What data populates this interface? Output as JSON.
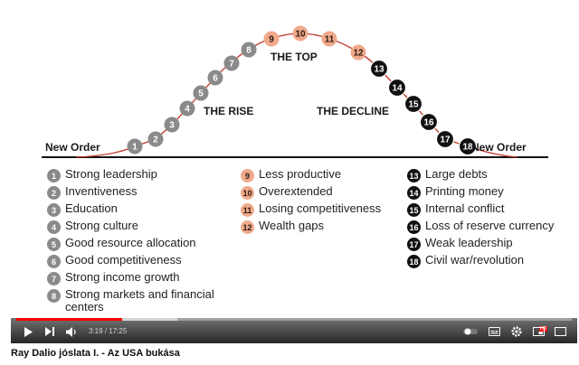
{
  "video": {
    "title": "Ray Dalio jóslata I. - Az USA bukása",
    "time_current": "3:19",
    "time_separator": "/",
    "time_total": "17:25",
    "played_fraction": 0.19,
    "buffered_fraction": 0.29,
    "hd_badge": "HD"
  },
  "slide": {
    "left_label": "New Order",
    "right_label": "New Order",
    "rise_label": "THE RISE",
    "top_label": "THE TOP",
    "decline_label": "THE DECLINE",
    "stages": [
      "1",
      "2",
      "3",
      "4",
      "5",
      "6",
      "7",
      "8",
      "9",
      "10",
      "11",
      "12",
      "13",
      "14",
      "15",
      "16",
      "17",
      "18"
    ],
    "colors": {
      "rise": "#8a8a8a",
      "top": "#f0a98b",
      "decline": "#111111",
      "curve": "#c0392b"
    },
    "columns": [
      {
        "color": "gray",
        "items": [
          {
            "n": "1",
            "t": "Strong leadership"
          },
          {
            "n": "2",
            "t": "Inventiveness"
          },
          {
            "n": "3",
            "t": "Education"
          },
          {
            "n": "4",
            "t": "Strong culture"
          },
          {
            "n": "5",
            "t": "Good resource allocation"
          },
          {
            "n": "6",
            "t": "Good competitiveness"
          },
          {
            "n": "7",
            "t": "Strong income growth"
          },
          {
            "n": "8",
            "t": "Strong markets and financial centers"
          }
        ]
      },
      {
        "color": "salmon",
        "items": [
          {
            "n": "9",
            "t": "Less productive"
          },
          {
            "n": "10",
            "t": "Overextended"
          },
          {
            "n": "11",
            "t": "Losing competitiveness"
          },
          {
            "n": "12",
            "t": "Wealth gaps"
          }
        ]
      },
      {
        "color": "black",
        "items": [
          {
            "n": "13",
            "t": "Large debts"
          },
          {
            "n": "14",
            "t": "Printing money"
          },
          {
            "n": "15",
            "t": "Internal conflict"
          },
          {
            "n": "16",
            "t": "Loss of reserve currency"
          },
          {
            "n": "17",
            "t": "Weak leadership"
          },
          {
            "n": "18",
            "t": "Civil war/revolution"
          }
        ]
      }
    ]
  },
  "icons": {
    "play": "play-icon",
    "next": "next-icon",
    "volume": "volume-icon",
    "autoplay": "autoplay-toggle-icon",
    "subtitles": "subtitles-icon",
    "settings": "gear-icon",
    "miniplayer": "miniplayer-icon",
    "fullscreen": "fullscreen-icon"
  }
}
